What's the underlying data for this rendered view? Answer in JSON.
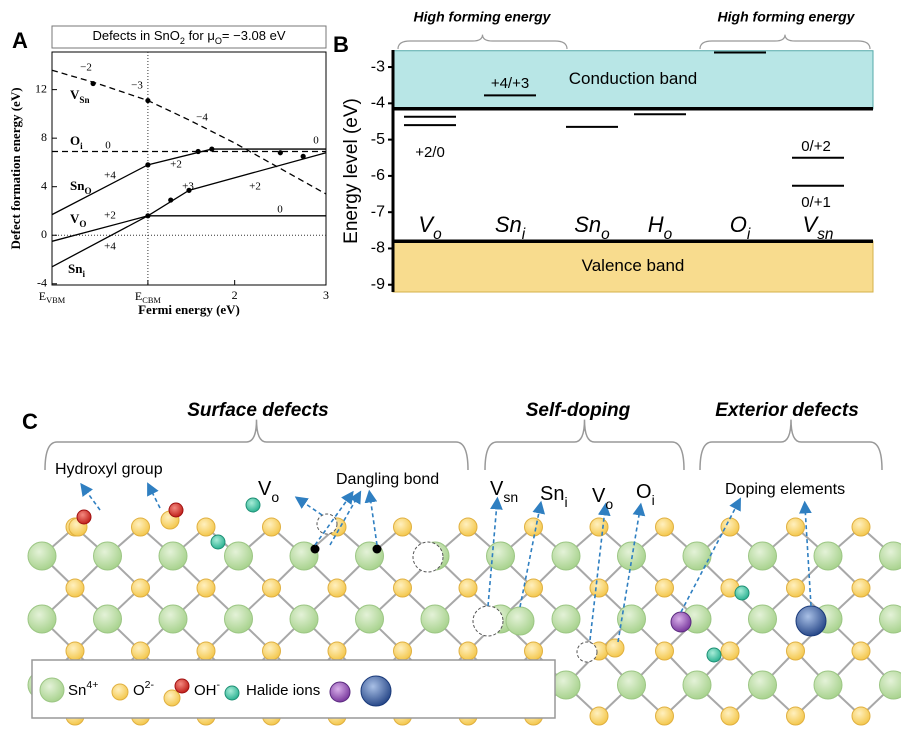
{
  "panel_a": {
    "label": "A",
    "title": [
      {
        "text": "Defects in SnO"
      },
      {
        "text": "2",
        "script": "sub"
      },
      {
        "text": " for μ"
      },
      {
        "text": "O",
        "script": "sub"
      },
      {
        "text": "= −3.08 eV"
      }
    ],
    "xlabel": "Fermi energy (eV)",
    "ylabel": "Defect formation energy (eV)",
    "xlim": [
      0,
      3
    ],
    "ylim": [
      -4.1,
      15.1
    ],
    "xticks": [
      {
        "value": 0,
        "label": [
          {
            "text": "E"
          },
          {
            "text": "VBM",
            "script": "sub"
          }
        ]
      },
      {
        "value": 1.05,
        "label": [
          {
            "text": "E"
          },
          {
            "text": "CBM",
            "script": "sub"
          }
        ]
      },
      2,
      3
    ],
    "yticks": [
      -4,
      0,
      4,
      8,
      12
    ],
    "reference_lines": {
      "x": 1.05,
      "y": 0
    },
    "curves": [
      {
        "name": [
          {
            "text": "V"
          },
          {
            "text": "Sn",
            "script": "sub"
          }
        ],
        "dashed": true,
        "x": [
          0,
          0.5,
          1.05,
          1.5,
          2,
          2.5,
          3
        ],
        "y": [
          13.6,
          12.5,
          11.1,
          9.5,
          7.6,
          5.5,
          3.4
        ],
        "dots_x": [
          0.45,
          1.05
        ],
        "dots_y": [
          12.5,
          11.1
        ]
      },
      {
        "name": [
          {
            "text": "O"
          },
          {
            "text": "i",
            "script": "sub"
          }
        ],
        "dashed": true,
        "x": [
          0,
          3
        ],
        "y": [
          6.9,
          6.9
        ],
        "dots_x": [
          2.5,
          2.75
        ],
        "dots_y": [
          6.8,
          6.5
        ]
      },
      {
        "name": [
          {
            "text": "Sn"
          },
          {
            "text": "O",
            "script": "sub"
          }
        ],
        "dashed": false,
        "x": [
          0,
          1.05,
          1.75,
          3
        ],
        "y": [
          1.7,
          5.8,
          7.1,
          7.1
        ],
        "dots_x": [
          1.05,
          1.6,
          1.75
        ],
        "dots_y": [
          5.8,
          6.9,
          7.1
        ]
      },
      {
        "name": [
          {
            "text": "V"
          },
          {
            "text": "O",
            "script": "sub"
          }
        ],
        "dashed": false,
        "x": [
          0,
          1.05,
          3
        ],
        "y": [
          -0.5,
          1.6,
          1.6
        ],
        "dots_x": [
          1.05
        ],
        "dots_y": [
          1.6
        ]
      },
      {
        "name": [
          {
            "text": "Sn"
          },
          {
            "text": "i",
            "script": "sub"
          }
        ],
        "dashed": false,
        "x": [
          0,
          1.05,
          1.5,
          3
        ],
        "y": [
          -2.6,
          1.6,
          3.7,
          6.8
        ],
        "dots_x": [
          1.3,
          1.5
        ],
        "dots_y": [
          2.9,
          3.7
        ]
      }
    ],
    "charge_labels": [
      "−2",
      "−3",
      "−4",
      "0",
      "0",
      "+4",
      "+2",
      "+3",
      "+2",
      "0",
      "+2",
      "+4"
    ]
  },
  "panel_b": {
    "label": "B",
    "ylabel": "Energy level (eV)",
    "ylim": [
      -9.2,
      -2.53
    ],
    "yticks": [
      -3,
      -4,
      -5,
      -6,
      -7,
      -8,
      -9
    ],
    "conduction_band": {
      "label": "Conduction band",
      "top": -2.55,
      "bottom": -4.15
    },
    "valence_band": {
      "label": "Valence band",
      "top": -7.8,
      "bottom": -9.2
    },
    "defects": [
      {
        "name": [
          {
            "text": "V"
          },
          {
            "text": "o",
            "script": "sub"
          }
        ],
        "levels": [
          -4.37,
          -4.6
        ]
      },
      {
        "name": [
          {
            "text": "Sn"
          },
          {
            "text": "i",
            "script": "sub"
          }
        ],
        "levels": [
          -3.78
        ]
      },
      {
        "name": [
          {
            "text": "Sn"
          },
          {
            "text": "o",
            "script": "sub"
          }
        ],
        "levels": [
          -4.65
        ]
      },
      {
        "name": [
          {
            "text": "H"
          },
          {
            "text": "o",
            "script": "sub"
          }
        ],
        "levels": [
          -4.3
        ]
      },
      {
        "name": [
          {
            "text": "O"
          },
          {
            "text": "i",
            "script": "sub"
          }
        ],
        "levels": [
          -2.6
        ]
      },
      {
        "name": [
          {
            "text": "V"
          },
          {
            "text": "sn",
            "script": "sub"
          }
        ],
        "levels": [
          -5.5,
          -6.27
        ]
      }
    ],
    "level_labels": [
      "+2/0",
      "+4/+3",
      "0/+2",
      "0/+1"
    ],
    "braces": [
      "High forming energy",
      "High forming energy"
    ]
  },
  "panel_c": {
    "label": "C",
    "groups": [
      "Surface defects",
      "Self-doping",
      "Exterior defects"
    ],
    "annotations": [
      [
        {
          "text": "Hydroxyl group"
        }
      ],
      [
        {
          "text": "V"
        },
        {
          "text": "o",
          "script": "sub"
        }
      ],
      [
        {
          "text": "Dangling bond"
        }
      ],
      [
        {
          "text": "V"
        },
        {
          "text": "sn",
          "script": "sub"
        }
      ],
      [
        {
          "text": "Sn"
        },
        {
          "text": "i",
          "script": "sub"
        }
      ],
      [
        {
          "text": "V"
        },
        {
          "text": "o",
          "script": "sub"
        }
      ],
      [
        {
          "text": "O"
        },
        {
          "text": "i",
          "script": "sub"
        }
      ],
      [
        {
          "text": "Doping elements"
        }
      ]
    ],
    "legend": [
      [
        {
          "text": "Sn"
        },
        {
          "text": "4+",
          "script": "sup"
        }
      ],
      [
        {
          "text": "O"
        },
        {
          "text": "2-",
          "script": "sup"
        }
      ],
      [
        {
          "text": "OH"
        },
        {
          "text": "-",
          "script": "sup"
        }
      ],
      [
        {
          "text": "Halide ions"
        }
      ],
      [
        {
          "text": ""
        }
      ]
    ]
  }
}
